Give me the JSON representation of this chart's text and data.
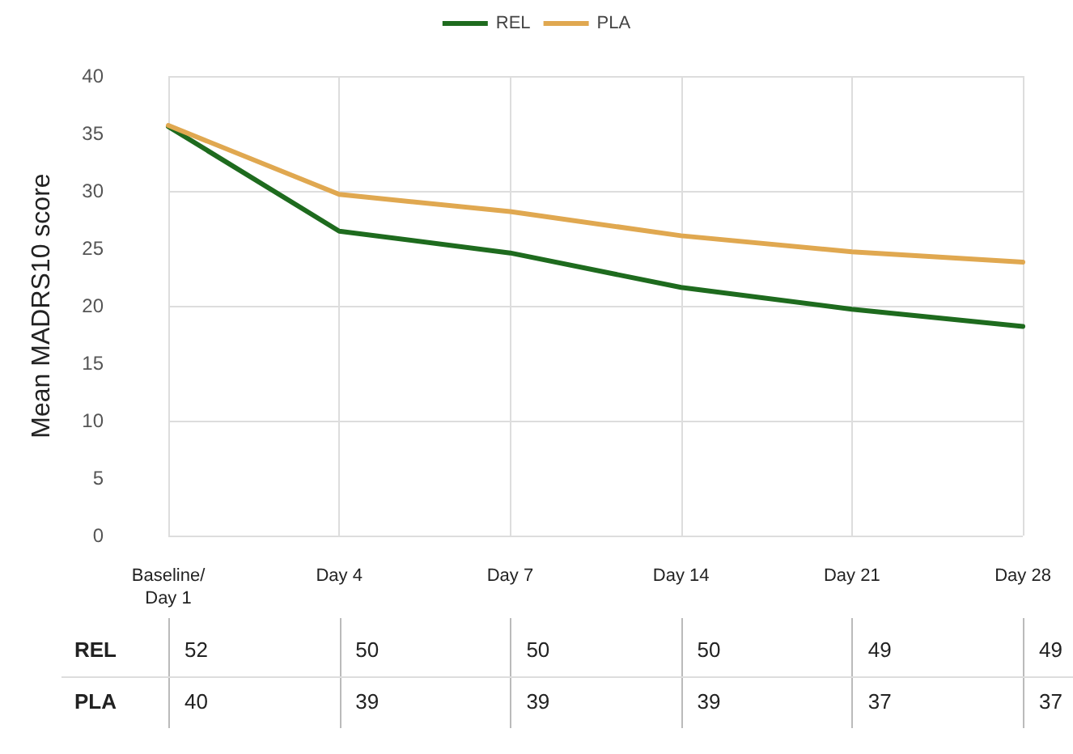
{
  "chart_data": {
    "type": "line",
    "ylabel": "Mean MADRS10 score",
    "categories": [
      "Baseline/\nDay 1",
      "Day 4",
      "Day 7",
      "Day 14",
      "Day 21",
      "Day 28"
    ],
    "series": [
      {
        "name": "REL",
        "color": "#1e6b1e",
        "values": [
          35.6,
          26.5,
          24.6,
          21.6,
          19.7,
          18.2
        ]
      },
      {
        "name": "PLA",
        "color": "#e0a850",
        "values": [
          35.7,
          29.7,
          28.2,
          26.1,
          24.7,
          23.8
        ]
      }
    ],
    "ylim": [
      0,
      40
    ],
    "yticks": [
      0,
      5,
      10,
      15,
      20,
      25,
      30,
      35,
      40
    ],
    "grid": true,
    "legend": "top",
    "marker": "none",
    "line_style": "solid",
    "annotations": [
      "REL",
      "52",
      "50",
      "50",
      "50",
      "49",
      "49",
      "PLA",
      "40",
      "39",
      "39",
      "39",
      "37",
      "37"
    ]
  }
}
